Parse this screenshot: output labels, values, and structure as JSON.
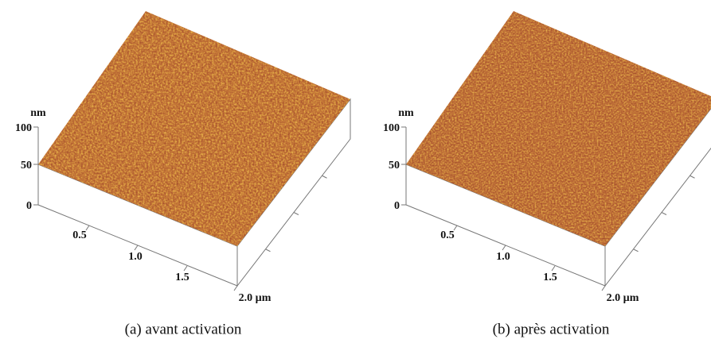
{
  "panels": [
    {
      "z_unit": "nm",
      "z_ticks": [
        "100",
        "50",
        "0"
      ],
      "x_ticks": [
        "0.5",
        "1.0",
        "1.5",
        "2.0 µm"
      ],
      "caption": "(a) avant activation"
    },
    {
      "z_unit": "nm",
      "z_ticks": [
        "100",
        "50",
        "0"
      ],
      "x_ticks": [
        "0.5",
        "1.0",
        "1.5",
        "2.0 µm"
      ],
      "caption": "(b) après activation"
    }
  ]
}
